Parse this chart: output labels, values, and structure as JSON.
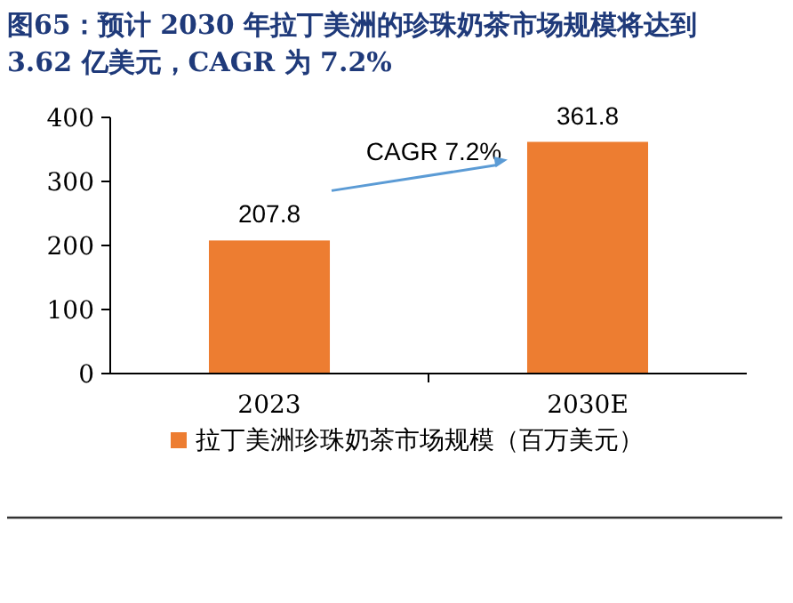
{
  "chart_data": {
    "type": "bar",
    "title": "图65：预计 2030 年拉丁美洲的珍珠奶茶市场规模将达到 3.62 亿美元，CAGR 为 7.2%",
    "categories": [
      "2023",
      "2030E"
    ],
    "series": [
      {
        "name": "拉丁美洲珍珠奶茶市场规模（百万美元）",
        "color": "#ed7d31",
        "values": [
          207.8,
          361.8
        ]
      }
    ],
    "ylim": [
      0,
      400
    ],
    "yticks": [
      0,
      100,
      200,
      300,
      400
    ],
    "data_labels": true,
    "legend": "bottom",
    "grid": false,
    "annotations": [
      "CAGR 7.2%"
    ]
  }
}
